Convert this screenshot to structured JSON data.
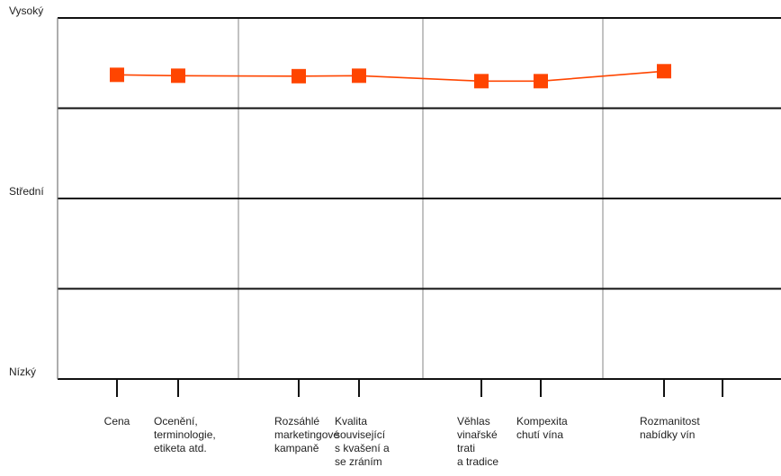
{
  "chart_data": {
    "type": "line",
    "title": "",
    "xlabel": "",
    "ylabel": "",
    "y_levels": [
      "Nízký",
      "Střední",
      "Vysoký"
    ],
    "ylim": [
      0,
      4
    ],
    "grid": true,
    "legend": "none",
    "categories": [
      [
        "Cena"
      ],
      [
        "Ocenění,",
        "terminologie,",
        "etiketa atd."
      ],
      [
        "Rozsáhlé",
        "marketingové",
        "kampaně"
      ],
      [
        "Kvalita",
        "související",
        "s kvašení a",
        "se zráním"
      ],
      [
        "Věhlas",
        "vinařské",
        "trati",
        "a tradice"
      ],
      [
        "Kompexita",
        "chutí vína"
      ],
      [
        "Rozmanitost",
        "nabídky vín"
      ]
    ],
    "series": [
      {
        "values": [
          3.37,
          3.36,
          3.355,
          3.36,
          3.3,
          3.3,
          3.41
        ],
        "color": "#ff4500"
      }
    ]
  }
}
